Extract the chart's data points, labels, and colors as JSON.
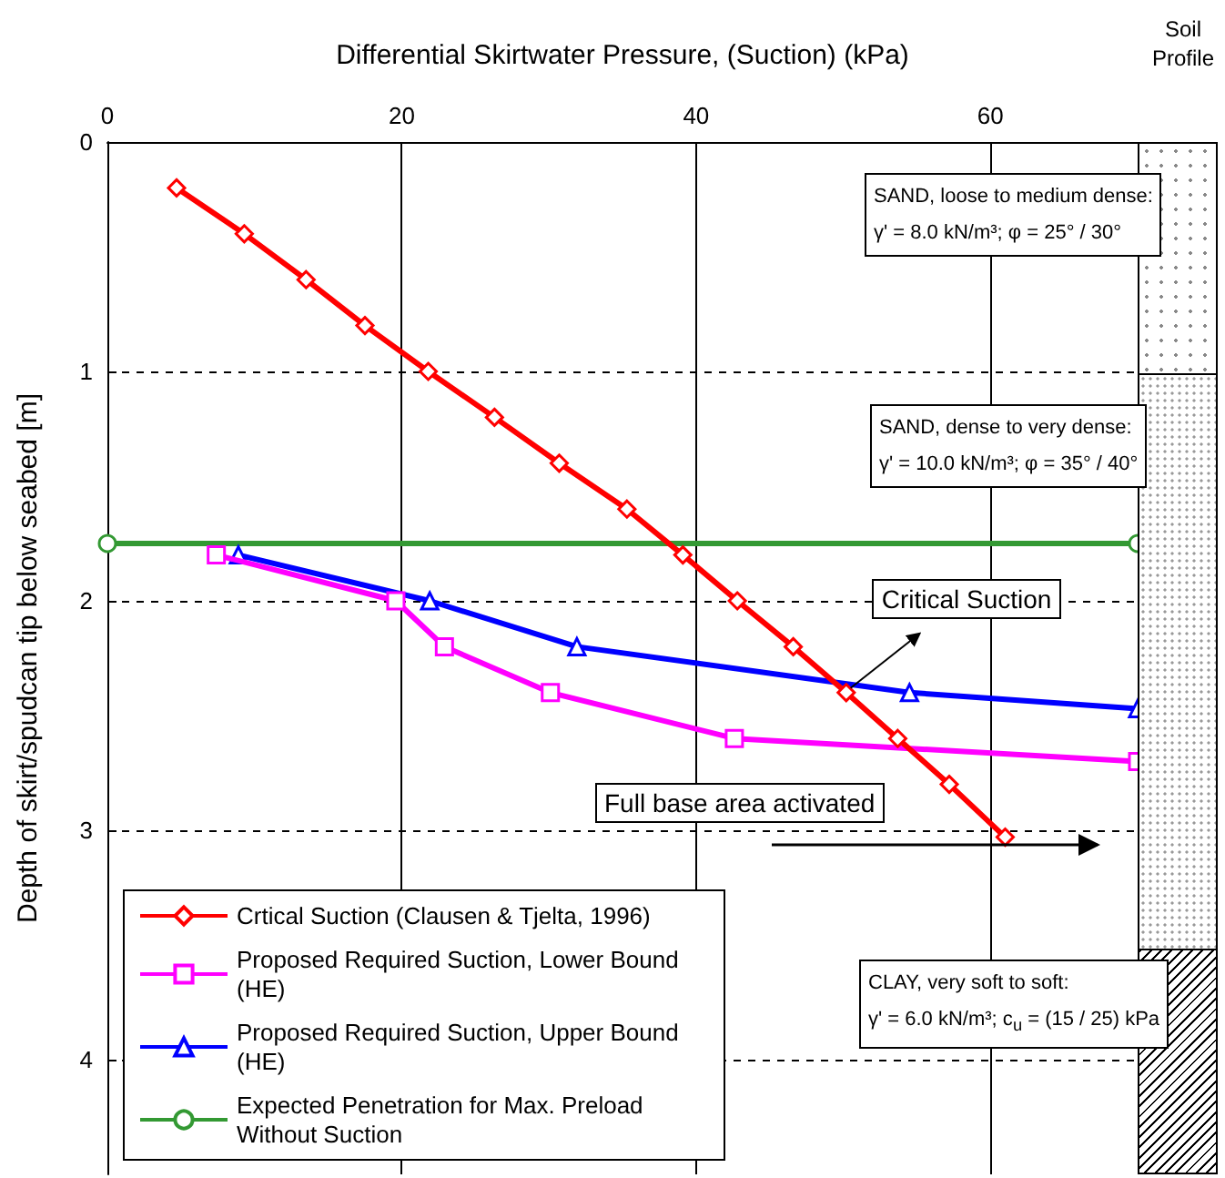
{
  "chart_data": {
    "type": "line",
    "xlabel": "Differential Skirtwater Pressure, (Suction) (kPa)",
    "ylabel": "Depth of skirt/spudcan tip below seabed [m]",
    "xlim": [
      0,
      70
    ],
    "xticks": [
      0,
      20,
      40,
      60
    ],
    "ylim": [
      4.5,
      0
    ],
    "yticks": [
      0,
      1,
      2,
      3,
      4
    ],
    "grid": true,
    "legend": "bottom left",
    "series": [
      {
        "name": "Crtical Suction (Clausen & Tjelta, 1996)",
        "color": "#ff0000",
        "marker": "diamond",
        "x": [
          4.7,
          9.3,
          13.5,
          17.5,
          21.8,
          26.3,
          30.7,
          35.3,
          39.1,
          42.8,
          46.6,
          50.2,
          53.7,
          57.2,
          61
        ],
        "values": [
          0.2,
          0.4,
          0.6,
          0.8,
          1.0,
          1.2,
          1.4,
          1.6,
          1.8,
          2.0,
          2.2,
          2.4,
          2.6,
          2.8,
          3.03
        ]
      },
      {
        "name": "Proposed Required Suction, Lower Bound (HE)",
        "color": "#ff00ff",
        "marker": "square",
        "x": [
          7.4,
          19.6,
          22.9,
          30.1,
          42.6,
          70
        ],
        "values": [
          1.8,
          2.0,
          2.2,
          2.4,
          2.6,
          2.7
        ]
      },
      {
        "name": "Proposed Required Suction, Upper Bound (HE)",
        "color": "#0000ff",
        "marker": "triangle",
        "x": [
          8.9,
          21.9,
          31.9,
          54.5,
          70
        ],
        "values": [
          1.8,
          2.0,
          2.2,
          2.4,
          2.47
        ]
      },
      {
        "name": "Expected Penetration for Max. Preload Without Suction",
        "color": "#339933",
        "marker": "circle",
        "x": [
          0,
          70
        ],
        "values": [
          1.75,
          1.75
        ]
      }
    ],
    "annotations": [
      {
        "text": "Critical Suction",
        "x": 50.5,
        "y": 2.38
      },
      "Full base area activated",
      "Soil Profile",
      "SAND, loose to medium dense:\nγ' = 8.0 kN/m³; φ = 25° / 30°",
      "SAND, dense to very dense:\nγ' = 10.0 kN/m³; φ = 35° / 40°",
      "CLAY, very soft to soft:\nγ' = 6.0 kN/m³; c$_{u}$ = (15 / 25) kPa"
    ]
  }
}
